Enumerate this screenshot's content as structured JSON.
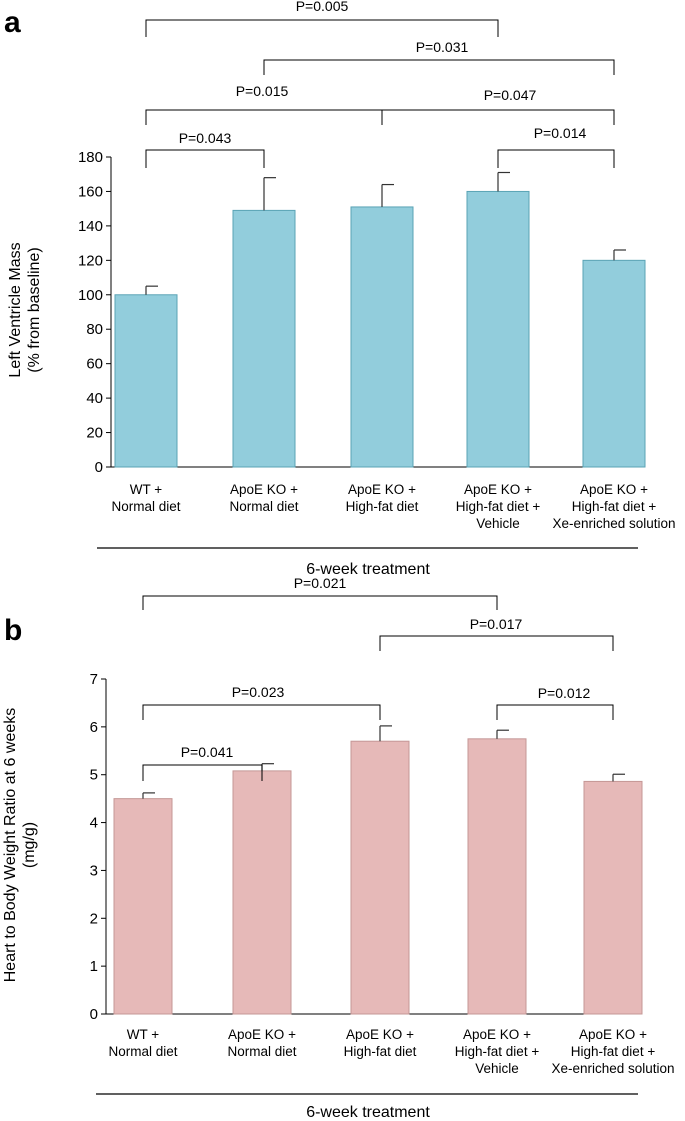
{
  "chart_data": [
    {
      "type": "bar",
      "panel": "a",
      "categories": [
        [
          "WT +",
          "Normal diet"
        ],
        [
          "ApoE KO +",
          "Normal diet"
        ],
        [
          "ApoE KO +",
          "High-fat diet"
        ],
        [
          "ApoE KO +",
          "High-fat diet +",
          "Vehicle"
        ],
        [
          "ApoE KO +",
          "High-fat diet +",
          "Xe-enriched solution"
        ]
      ],
      "values": [
        100,
        149,
        151,
        160,
        120
      ],
      "errors": [
        5,
        19,
        13,
        11,
        6
      ],
      "ylabel": [
        "Left Ventricle Mass",
        "(% from baseline)"
      ],
      "xlabel": "6-week treatment",
      "ylim": [
        0,
        180
      ],
      "yticks": [
        0,
        20,
        40,
        60,
        80,
        100,
        120,
        140,
        160,
        180
      ],
      "bar_color": "#92cddc",
      "bar_edge": "#5aa3b5",
      "significance": [
        {
          "from": 0,
          "to": 1,
          "label": "P=0.043"
        },
        {
          "from": 3,
          "to": 4,
          "label": "P=0.014"
        },
        {
          "from": 0,
          "to": 2,
          "label": "P=0.015"
        },
        {
          "from": 2,
          "to": 4,
          "label": "P=0.047"
        },
        {
          "from": 1,
          "to": 4,
          "label": "P=0.031"
        },
        {
          "from": 0,
          "to": 3,
          "label": "P=0.005"
        }
      ]
    },
    {
      "type": "bar",
      "panel": "b",
      "categories": [
        [
          "WT +",
          "Normal diet"
        ],
        [
          "ApoE KO +",
          "Normal diet"
        ],
        [
          "ApoE KO +",
          "High-fat diet"
        ],
        [
          "ApoE KO +",
          "High-fat diet +",
          "Vehicle"
        ],
        [
          "ApoE KO +",
          "High-fat diet +",
          "Xe-enriched solution"
        ]
      ],
      "values": [
        4.5,
        5.08,
        5.7,
        5.75,
        4.86
      ],
      "errors": [
        0.12,
        0.15,
        0.32,
        0.18,
        0.15
      ],
      "ylabel": [
        "Heart to Body Weight Ratio at 6 weeks",
        "(mg/g)"
      ],
      "xlabel": "6-week treatment",
      "ylim": [
        0,
        7
      ],
      "yticks": [
        0,
        1,
        2,
        3,
        4,
        5,
        6,
        7
      ],
      "bar_color": "#e6b9b8",
      "bar_edge": "#c49796",
      "significance": [
        {
          "from": 0,
          "to": 1,
          "label": "P=0.041"
        },
        {
          "from": 3,
          "to": 4,
          "label": "P=0.012"
        },
        {
          "from": 0,
          "to": 2,
          "label": "P=0.023"
        },
        {
          "from": 2,
          "to": 4,
          "label": "P=0.017"
        },
        {
          "from": 0,
          "to": 3,
          "label": "P=0.021"
        }
      ]
    }
  ]
}
